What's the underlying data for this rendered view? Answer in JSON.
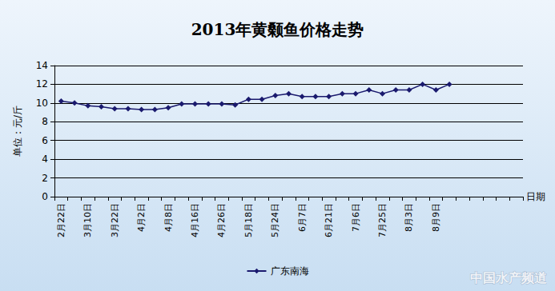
{
  "chart_data": {
    "type": "line",
    "title": "2013年黄颡鱼价格走势",
    "x_label": "日期",
    "y_label": "单位：元/斤",
    "categories": [
      "2月22日",
      null,
      "3月10日",
      null,
      "3月22日",
      null,
      "4月2日",
      null,
      "4月8日",
      null,
      "4月16日",
      null,
      "4月26日",
      null,
      "5月18日",
      null,
      "5月24日",
      null,
      "6月7日",
      null,
      "6月21日",
      null,
      "7月6日",
      null,
      "7月25日",
      null,
      "8月3日",
      null,
      "8月9日",
      null,
      null,
      null,
      null,
      null,
      null
    ],
    "series": [
      {
        "name": "广东南海",
        "color": "#1a1a6e",
        "marker": "diamond",
        "values": [
          10.2,
          10.0,
          9.7,
          9.6,
          9.4,
          9.4,
          9.3,
          9.3,
          9.5,
          9.9,
          9.9,
          9.9,
          9.9,
          9.8,
          10.4,
          10.4,
          10.8,
          11.0,
          10.7,
          10.7,
          10.7,
          11.0,
          11.0,
          11.4,
          11.0,
          11.4,
          11.4,
          12.0,
          11.4,
          12.0,
          null,
          null,
          null,
          null,
          null
        ]
      }
    ],
    "ylim": [
      0,
      14
    ],
    "yticks": [
      0,
      2,
      4,
      6,
      8,
      10,
      12,
      14
    ],
    "grid": true,
    "legend": "bottom",
    "annotations": [
      "中国水产频道"
    ]
  }
}
